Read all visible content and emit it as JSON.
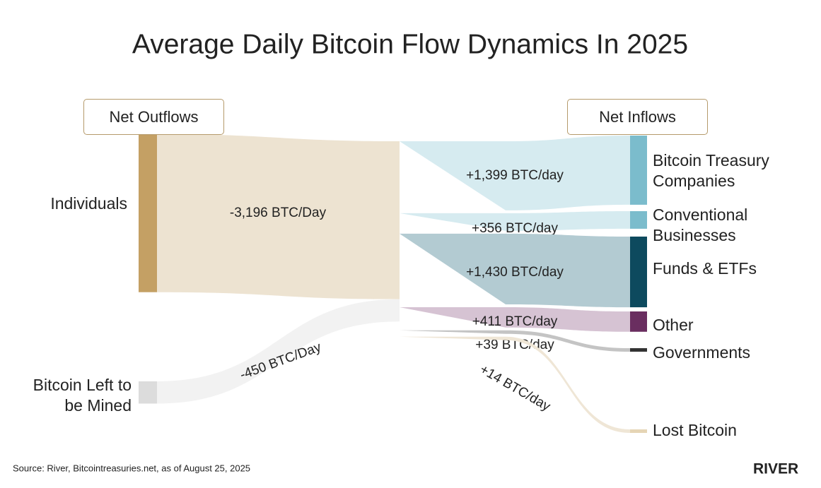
{
  "chart_data": {
    "type": "sankey",
    "title": "Average Daily Bitcoin Flow Dynamics In 2025",
    "left_header": "Net Outflows",
    "right_header": "Net Inflows",
    "sources": [
      {
        "name": "Individuals",
        "value": -3196,
        "value_label": "-3,196 BTC/Day",
        "color": "#c4a064",
        "flow_color": "#ede3d1"
      },
      {
        "name": "Bitcoin Left to be Mined",
        "value": -450,
        "value_label": "-450 BTC/Day",
        "color": "#dcdcdc",
        "flow_color": "#f2f2f2"
      }
    ],
    "targets": [
      {
        "name": "Bitcoin Treasury Companies",
        "value": 1399,
        "value_label": "+1,399 BTC/day",
        "color": "#7bbccc",
        "flow_color": "#d6ebf0"
      },
      {
        "name": "Conventional Businesses",
        "value": 356,
        "value_label": "+356 BTC/day",
        "color": "#7bbccc",
        "flow_color": "#d6ebf0"
      },
      {
        "name": "Funds & ETFs",
        "value": 1430,
        "value_label": "+1,430 BTC/day",
        "color": "#0d4a5e",
        "flow_color": "#b3cbd2"
      },
      {
        "name": "Other",
        "value": 411,
        "value_label": "+411 BTC/day",
        "color": "#6a2e60",
        "flow_color": "#d6c3d3"
      },
      {
        "name": "Governments",
        "value": 39,
        "value_label": "+39 BTC/day",
        "color": "#333333",
        "flow_color": "#c4c4c4"
      },
      {
        "name": "Lost Bitcoin",
        "value": 14,
        "value_label": "+14 BTC/day",
        "color": "#e5d5b5",
        "flow_color": "#efe6d6"
      }
    ],
    "source_note": "Source: River, Bitcointreasuries.net, as of August 25, 2025",
    "brand": "RIVER"
  }
}
